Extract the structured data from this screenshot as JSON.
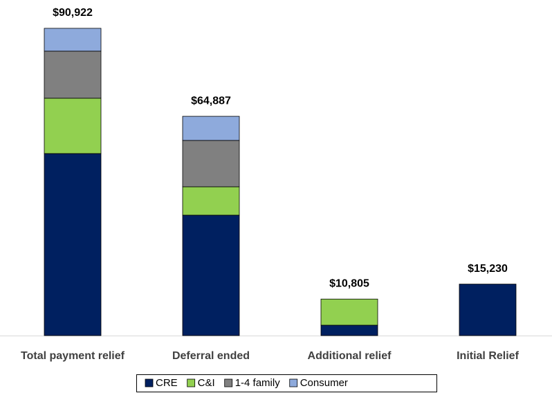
{
  "chart_data": {
    "type": "stacked_bar",
    "categories": [
      "Total payment relief",
      "Deferral ended",
      "Additional relief",
      "Initial Relief"
    ],
    "series": [
      {
        "name": "CRE",
        "color": "#002060",
        "values": [
          53860,
          35630,
          3070,
          15230
        ]
      },
      {
        "name": "C&I",
        "color": "#92d050",
        "values": [
          16380,
          8400,
          7735,
          0
        ]
      },
      {
        "name": "1-4 family",
        "color": "#808080",
        "values": [
          13930,
          13720,
          0,
          0
        ]
      },
      {
        "name": "Consumer",
        "color": "#8eaadc",
        "values": [
          6752,
          7137,
          0,
          0
        ]
      }
    ],
    "totals": [
      90922,
      64887,
      10805,
      15230
    ],
    "total_labels": [
      "$90,922",
      "$64,887",
      "$10,805",
      "$15,230"
    ],
    "ylim": [
      0,
      95000
    ],
    "legend": "bottom"
  }
}
